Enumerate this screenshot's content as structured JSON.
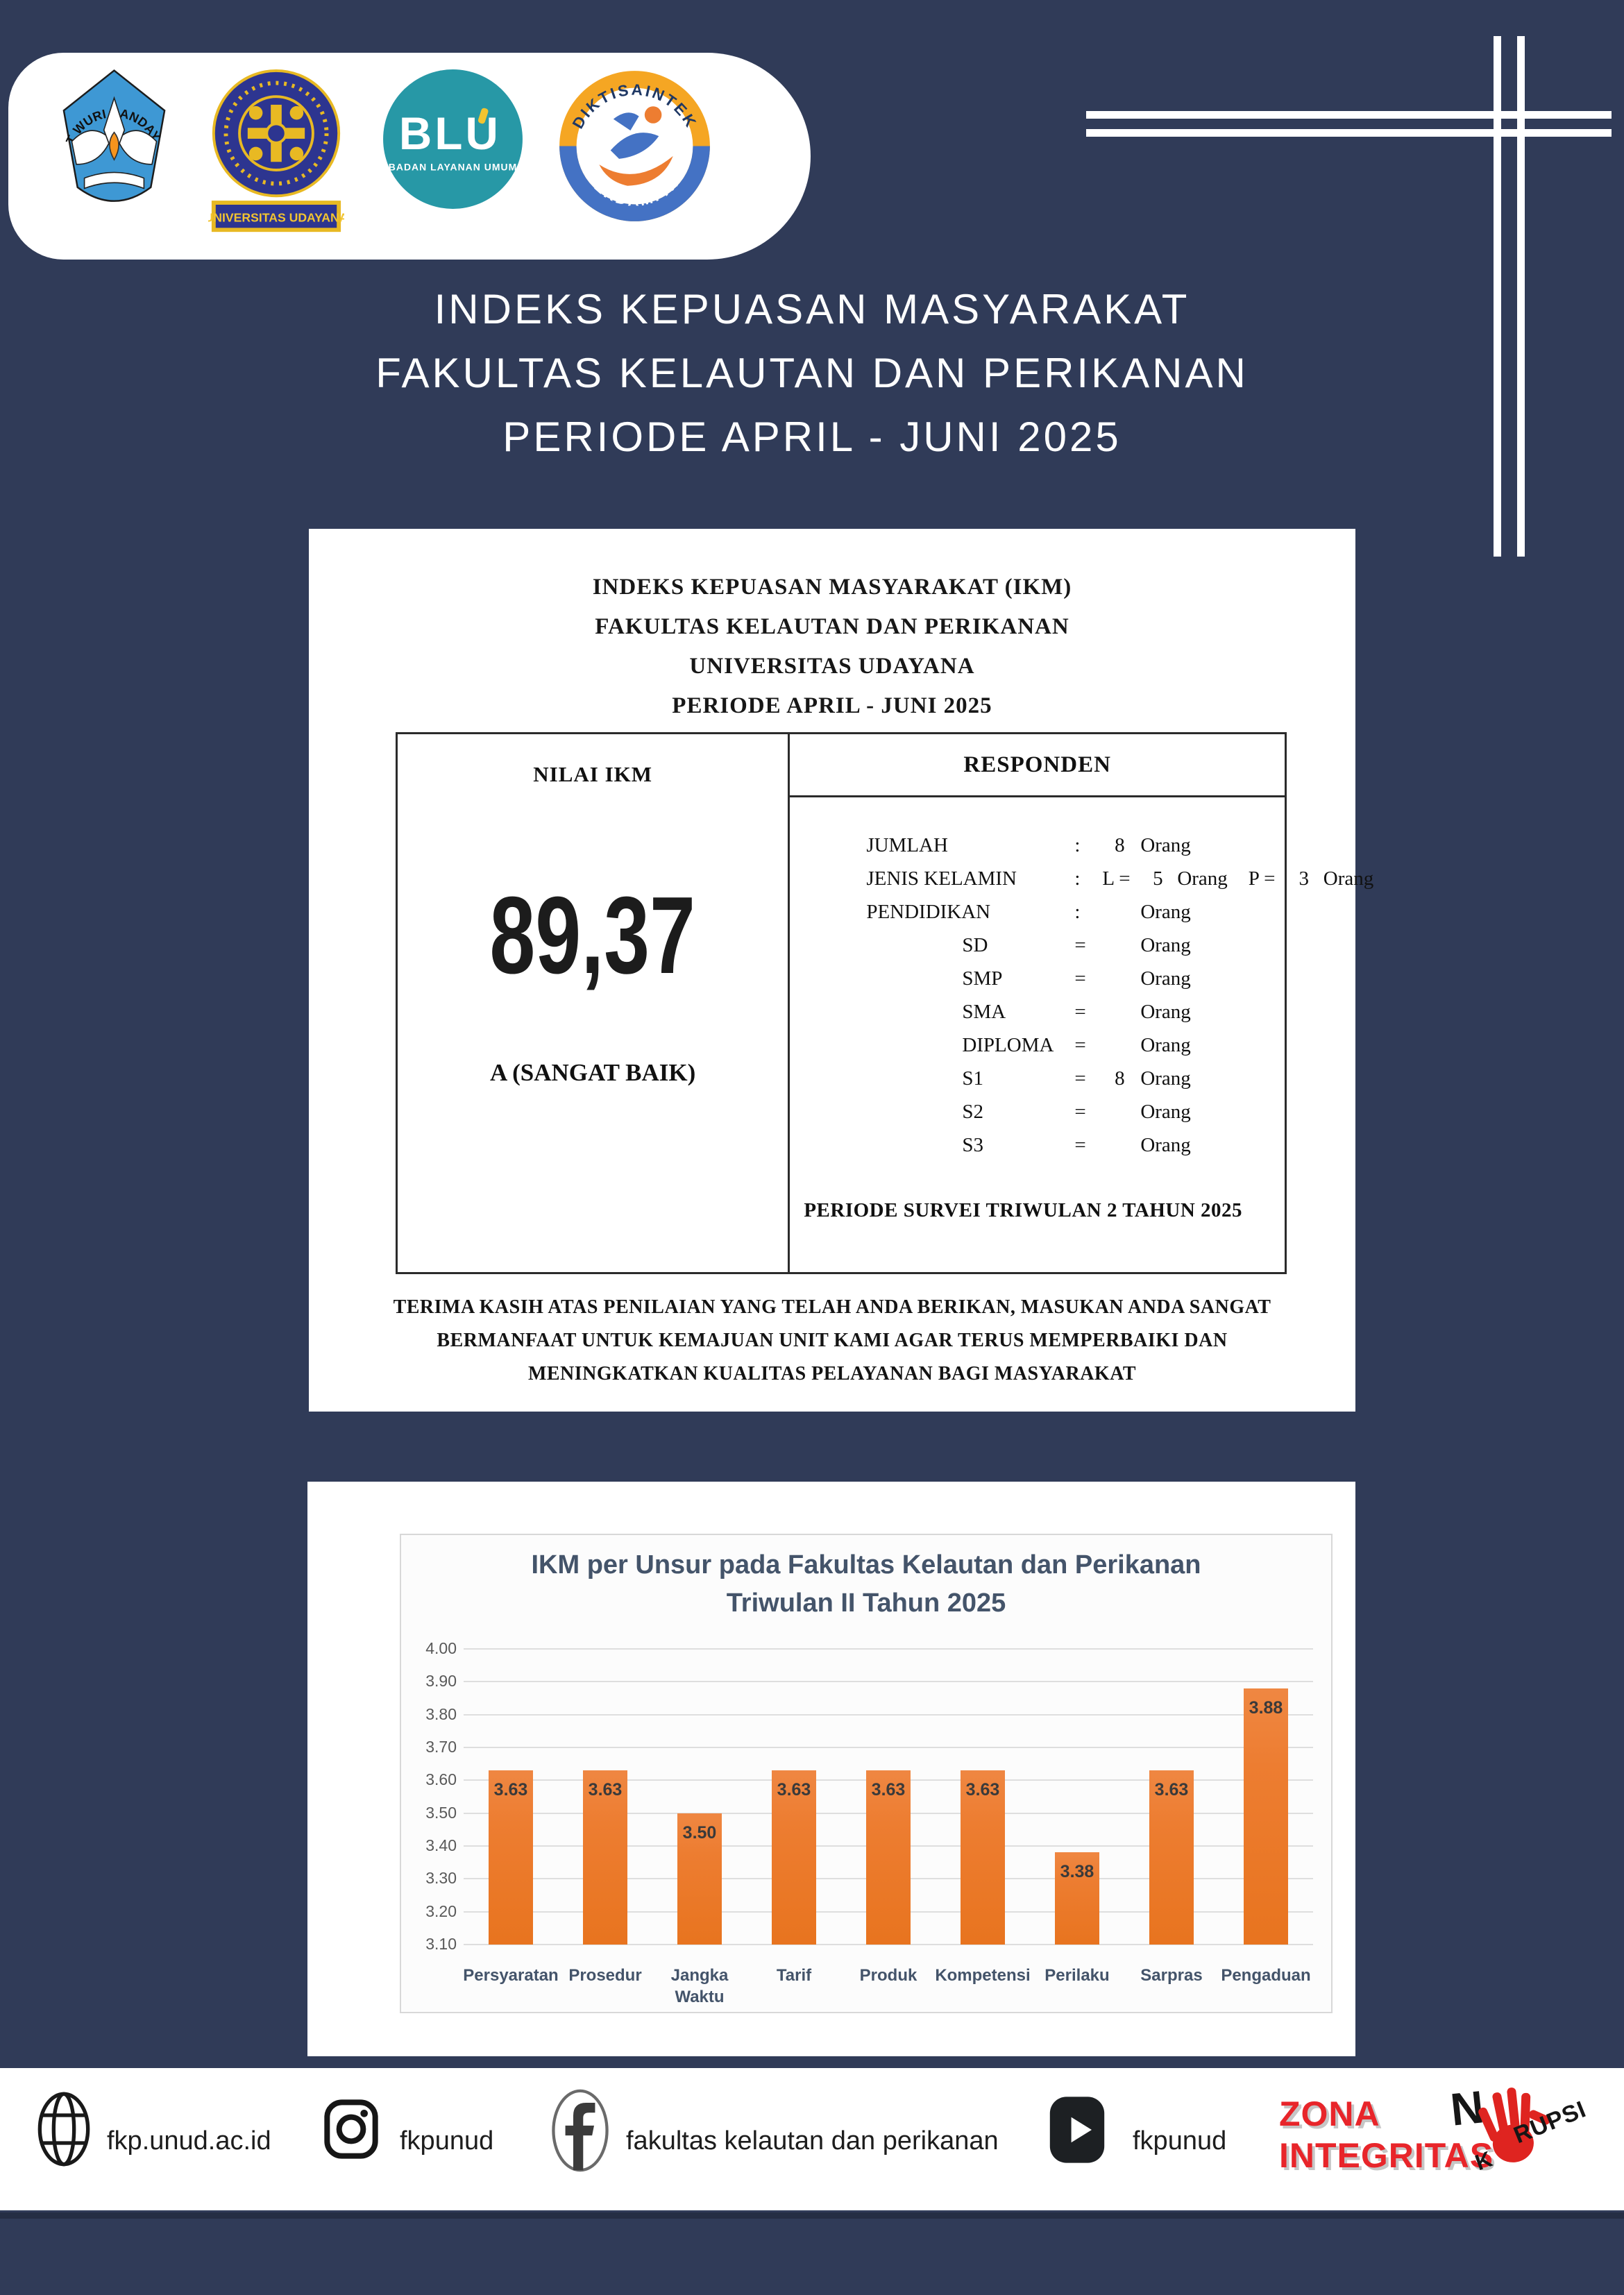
{
  "colors": {
    "background": "#303B58",
    "bar": "#ED7D31",
    "chart_text": "#44546A",
    "tick_text": "#595959",
    "zona_red": "#E8252A"
  },
  "header": {
    "logos": [
      {
        "name": "tut-wuri-handayani",
        "arc_text": "TUT WURI HANDAYANI"
      },
      {
        "name": "universitas-udayana",
        "label": "UNIVERSITAS UDAYANA"
      },
      {
        "name": "blu",
        "label": "BLU",
        "sub": "BADAN LAYANAN UMUM"
      },
      {
        "name": "diktisaintek-berdampak",
        "top": "DIKTISAINTEK",
        "bottom": "BERDAMPAK"
      }
    ],
    "title_lines": [
      "INDEKS KEPUASAN MASYARAKAT",
      "FAKULTAS KELAUTAN DAN PERIKANAN",
      "PERIODE APRIL - JUNI 2025"
    ]
  },
  "report_card": {
    "heading_lines": [
      "INDEKS KEPUASAN MASYARAKAT (IKM)",
      "FAKULTAS KELAUTAN DAN PERIKANAN",
      "UNIVERSITAS UDAYANA",
      "PERIODE APRIL - JUNI 2025"
    ],
    "nilai": {
      "header": "NILAI IKM",
      "value": "89,37",
      "grade": "A (SANGAT BAIK)"
    },
    "responden": {
      "header": "RESPONDEN",
      "rows": [
        {
          "label": "JUMLAH",
          "sep": ":",
          "num": "8",
          "unit": "Orang"
        },
        {
          "label": "JENIS KELAMIN",
          "sep": ":",
          "pairs": [
            {
              "k": "L =",
              "num": "5",
              "unit": "Orang"
            },
            {
              "k": "P =",
              "num": "3",
              "unit": "Orang"
            }
          ]
        },
        {
          "label": "PENDIDIKAN",
          "sep": ":",
          "num": "",
          "unit": "Orang"
        },
        {
          "label": "SD",
          "sep": "=",
          "num": "",
          "unit": "Orang",
          "indent": true
        },
        {
          "label": "SMP",
          "sep": "=",
          "num": "",
          "unit": "Orang",
          "indent": true
        },
        {
          "label": "SMA",
          "sep": "=",
          "num": "",
          "unit": "Orang",
          "indent": true
        },
        {
          "label": "DIPLOMA",
          "sep": "=",
          "num": "",
          "unit": "Orang",
          "indent": true
        },
        {
          "label": "S1",
          "sep": "=",
          "num": "8",
          "unit": "Orang",
          "indent": true
        },
        {
          "label": "S2",
          "sep": "=",
          "num": "",
          "unit": "Orang",
          "indent": true
        },
        {
          "label": "S3",
          "sep": "=",
          "num": "",
          "unit": "Orang",
          "indent": true
        }
      ],
      "periode": "PERIODE SURVEI TRIWULAN 2 TAHUN 2025"
    },
    "thanks_lines": [
      "TERIMA KASIH ATAS PENILAIAN YANG TELAH ANDA BERIKAN, MASUKAN ANDA SANGAT",
      "BERMANFAAT UNTUK KEMAJUAN UNIT KAMI AGAR TERUS MEMPERBAIKI DAN",
      "MENINGKATKAN KUALITAS PELAYANAN BAGI MASYARAKAT"
    ]
  },
  "chart_data": {
    "type": "bar",
    "title_lines": [
      "IKM per Unsur pada Fakultas Kelautan dan Perikanan",
      "Triwulan II Tahun 2025"
    ],
    "title": "IKM per Unsur pada Fakultas Kelautan dan Perikanan Triwulan II Tahun 2025",
    "categories": [
      [
        "Persyaratan"
      ],
      [
        "Prosedur"
      ],
      [
        "Jangka",
        "Waktu"
      ],
      [
        "Tarif"
      ],
      [
        "Produk"
      ],
      [
        "Kompetensi"
      ],
      [
        "Perilaku"
      ],
      [
        "Sarpras"
      ],
      [
        "Pengaduan"
      ]
    ],
    "values": [
      3.63,
      3.63,
      3.5,
      3.63,
      3.63,
      3.63,
      3.38,
      3.63,
      3.88
    ],
    "labels": [
      "3.63",
      "3.63",
      "3.50",
      "3.63",
      "3.63",
      "3.63",
      "3.38",
      "3.63",
      "3.88"
    ],
    "xlabel": "",
    "ylabel": "",
    "ylim": [
      3.1,
      4.0
    ],
    "yticks": [
      4.0,
      3.9,
      3.8,
      3.7,
      3.6,
      3.5,
      3.4,
      3.3,
      3.2,
      3.1
    ],
    "grid": true,
    "legend": false,
    "bar_color": "#ED7D31"
  },
  "footer": {
    "items": [
      {
        "icon": "globe-icon",
        "text": "fkp.unud.ac.id"
      },
      {
        "icon": "instagram-icon",
        "text": "fkpunud"
      },
      {
        "icon": "facebook-icon",
        "text": "fakultas kelautan dan perikanan"
      },
      {
        "icon": "youtube-icon",
        "text": "fkpunud"
      }
    ],
    "zona": {
      "line1": "ZONA",
      "line2": "INTEGRITAS"
    },
    "korupsi": {
      "n": "N",
      "k": "K",
      "rest": "RUPSI"
    }
  }
}
